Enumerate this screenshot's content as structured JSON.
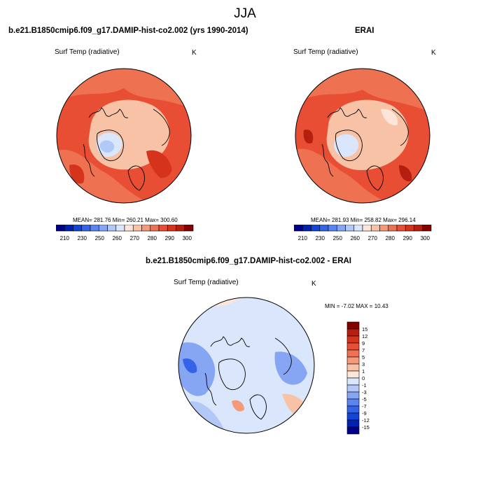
{
  "figure": {
    "season": "JJA"
  },
  "panels": [
    {
      "title": "b.e21.B1850cmip6.f09_g17.DAMIP-hist-co2.002 (yrs 1990-2014)",
      "variable": "Surf Temp (radiative)",
      "units": "K",
      "stats": "MEAN= 281.76  Min= 260.21  Max= 300.60"
    },
    {
      "title": "ERAI",
      "variable": "Surf Temp (radiative)",
      "units": "K",
      "stats": "MEAN= 281.93  Min= 258.82  Max= 296.14"
    },
    {
      "title": "b.e21.B1850cmip6.f09_g17.DAMIP-hist-co2.002 - ERAI",
      "variable": "Surf Temp (radiative)",
      "units": "K",
      "stats": "MIN =  -7.02 MAX =  10.43"
    }
  ],
  "colorbar_abs": {
    "colors": [
      "#00008b",
      "#0022b0",
      "#1145d8",
      "#3463e8",
      "#5b84ee",
      "#86a5f2",
      "#b2c8f6",
      "#dae6fb",
      "#fde6d9",
      "#f8c2a6",
      "#f49a7a",
      "#ee7152",
      "#e84e33",
      "#d6331c",
      "#b41f10",
      "#860000"
    ],
    "labels": [
      "210",
      "230",
      "250",
      "260",
      "270",
      "280",
      "290",
      "300"
    ]
  },
  "colorbar_diff": {
    "colors": [
      "#860000",
      "#b41f10",
      "#d6331c",
      "#e84e33",
      "#ee7152",
      "#f49a7a",
      "#f8c2a6",
      "#fde6d9",
      "#dae6fb",
      "#b2c8f6",
      "#86a5f2",
      "#5b84ee",
      "#3463e8",
      "#1145d8",
      "#0022b0",
      "#00008b"
    ],
    "labels": [
      "15",
      "12",
      "9",
      "7",
      "5",
      "3",
      "1",
      "0",
      "-1",
      "-3",
      "-5",
      "-7",
      "-9",
      "-12",
      "-15"
    ]
  }
}
